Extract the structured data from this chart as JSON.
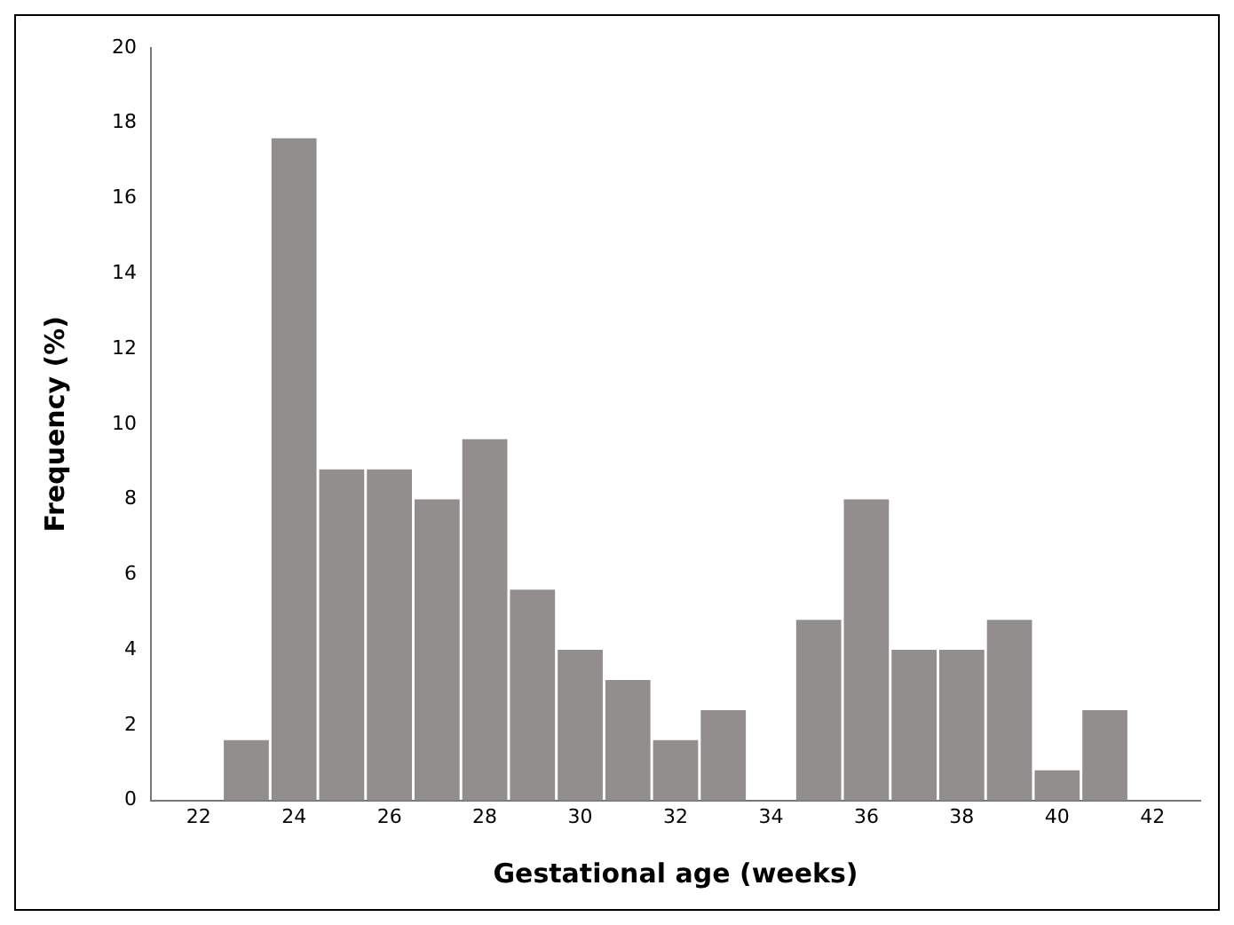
{
  "chart_data": {
    "type": "histogram",
    "xlabel": "Gestational age (weeks)",
    "ylabel": "Frequency (%)",
    "bins": [
      22.5,
      23.5,
      24.5,
      25.5,
      26.5,
      27.5,
      28.5,
      29.5,
      30.5,
      31.5,
      32.5,
      33.5,
      34.5,
      35.5,
      36.5,
      37.5,
      38.5,
      39.5,
      40.5,
      41.5
    ],
    "values": [
      1.6,
      17.6,
      8.8,
      8.8,
      8,
      9.6,
      5.6,
      4,
      3.2,
      1.6,
      2.4,
      0,
      4.8,
      8,
      4,
      4,
      4.8,
      0.8,
      2.4
    ],
    "color": "#918e8d",
    "xlim": [
      21,
      43
    ],
    "xticks": [
      22,
      24,
      26,
      28,
      30,
      32,
      34,
      36,
      38,
      40,
      42
    ],
    "ylim": [
      0,
      20
    ],
    "yticks": [
      0,
      2,
      4,
      6,
      8,
      10,
      12,
      14,
      16,
      18,
      20
    ],
    "grid": false,
    "legend": false
  }
}
